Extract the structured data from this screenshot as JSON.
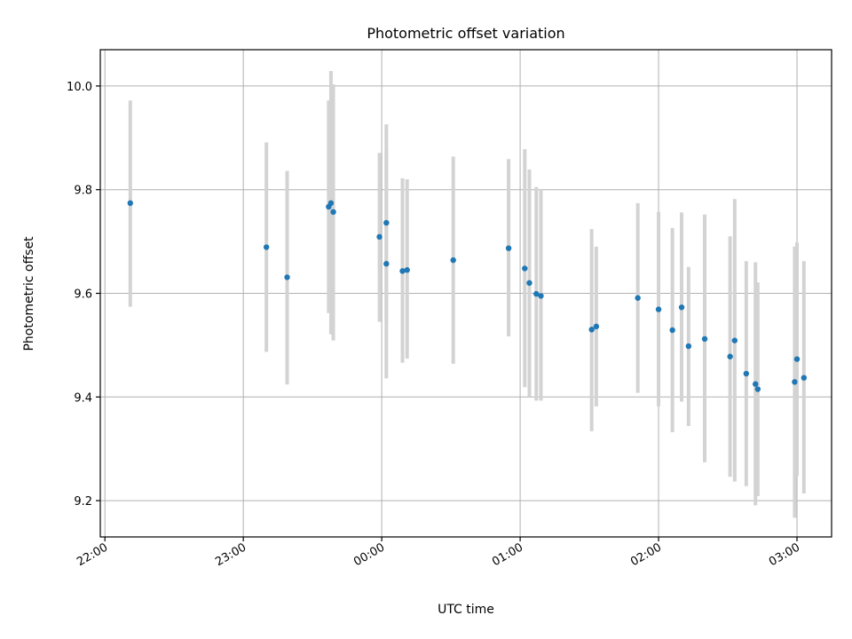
{
  "chart_data": {
    "type": "scatter",
    "title": "Photometric offset variation",
    "xlabel": "UTC time",
    "ylabel": "Photometric offset",
    "x_axis": {
      "start": "21:58",
      "end": "03:15",
      "tick_labels": [
        "22:00",
        "23:00",
        "00:00",
        "01:00",
        "02:00",
        "03:00"
      ]
    },
    "y_axis": {
      "ylim": [
        9.13,
        10.07
      ],
      "tick_values": [
        9.2,
        9.4,
        9.6,
        9.8,
        10.0
      ],
      "tick_labels": [
        "9.2",
        "9.4",
        "9.6",
        "9.8",
        "10.0"
      ]
    },
    "grid": true,
    "colors": {
      "points": "#1f77b4",
      "error_bars": "#d3d3d3",
      "grid": "#b0b0b0"
    },
    "series": [
      {
        "points": [
          {
            "t": "22:11",
            "y": 9.774,
            "ylo": 9.574,
            "yhi": 9.972
          },
          {
            "t": "23:10",
            "y": 9.689,
            "ylo": 9.487,
            "yhi": 9.891
          },
          {
            "t": "23:19",
            "y": 9.631,
            "ylo": 9.424,
            "yhi": 9.836
          },
          {
            "t": "23:37",
            "y": 9.767,
            "ylo": 9.562,
            "yhi": 9.972
          },
          {
            "t": "23:38",
            "y": 9.774,
            "ylo": 9.521,
            "yhi": 10.029
          },
          {
            "t": "23:39",
            "y": 9.757,
            "ylo": 9.509,
            "yhi": 10.003
          },
          {
            "t": "23:59",
            "y": 9.709,
            "ylo": 9.545,
            "yhi": 9.871
          },
          {
            "t": "00:02",
            "y": 9.736,
            "ylo": 9.545,
            "yhi": 9.926
          },
          {
            "t": "00:02",
            "y": 9.657,
            "ylo": 9.436,
            "yhi": 9.878
          },
          {
            "t": "00:09",
            "y": 9.643,
            "ylo": 9.466,
            "yhi": 9.822
          },
          {
            "t": "00:11",
            "y": 9.645,
            "ylo": 9.474,
            "yhi": 9.82
          },
          {
            "t": "00:31",
            "y": 9.664,
            "ylo": 9.464,
            "yhi": 9.864
          },
          {
            "t": "00:55",
            "y": 9.687,
            "ylo": 9.517,
            "yhi": 9.859
          },
          {
            "t": "01:02",
            "y": 9.648,
            "ylo": 9.419,
            "yhi": 9.878
          },
          {
            "t": "01:04",
            "y": 9.62,
            "ylo": 9.401,
            "yhi": 9.839
          },
          {
            "t": "01:07",
            "y": 9.599,
            "ylo": 9.393,
            "yhi": 9.805
          },
          {
            "t": "01:09",
            "y": 9.595,
            "ylo": 9.393,
            "yhi": 9.8
          },
          {
            "t": "01:31",
            "y": 9.53,
            "ylo": 9.334,
            "yhi": 9.724
          },
          {
            "t": "01:33",
            "y": 9.536,
            "ylo": 9.382,
            "yhi": 9.69
          },
          {
            "t": "01:51",
            "y": 9.591,
            "ylo": 9.408,
            "yhi": 9.774
          },
          {
            "t": "02:00",
            "y": 9.569,
            "ylo": 9.382,
            "yhi": 9.757
          },
          {
            "t": "02:06",
            "y": 9.529,
            "ylo": 9.332,
            "yhi": 9.726
          },
          {
            "t": "02:10",
            "y": 9.573,
            "ylo": 9.391,
            "yhi": 9.756
          },
          {
            "t": "02:13",
            "y": 9.498,
            "ylo": 9.344,
            "yhi": 9.651
          },
          {
            "t": "02:20",
            "y": 9.512,
            "ylo": 9.274,
            "yhi": 9.752
          },
          {
            "t": "02:31",
            "y": 9.478,
            "ylo": 9.246,
            "yhi": 9.71
          },
          {
            "t": "02:33",
            "y": 9.509,
            "ylo": 9.237,
            "yhi": 9.782
          },
          {
            "t": "02:38",
            "y": 9.445,
            "ylo": 9.228,
            "yhi": 9.662
          },
          {
            "t": "02:42",
            "y": 9.425,
            "ylo": 9.191,
            "yhi": 9.66
          },
          {
            "t": "02:43",
            "y": 9.415,
            "ylo": 9.209,
            "yhi": 9.621
          },
          {
            "t": "02:59",
            "y": 9.429,
            "ylo": 9.167,
            "yhi": 9.69
          },
          {
            "t": "03:00",
            "y": 9.473,
            "ylo": 9.248,
            "yhi": 9.698
          },
          {
            "t": "03:03",
            "y": 9.437,
            "ylo": 9.214,
            "yhi": 9.662
          }
        ]
      }
    ]
  }
}
